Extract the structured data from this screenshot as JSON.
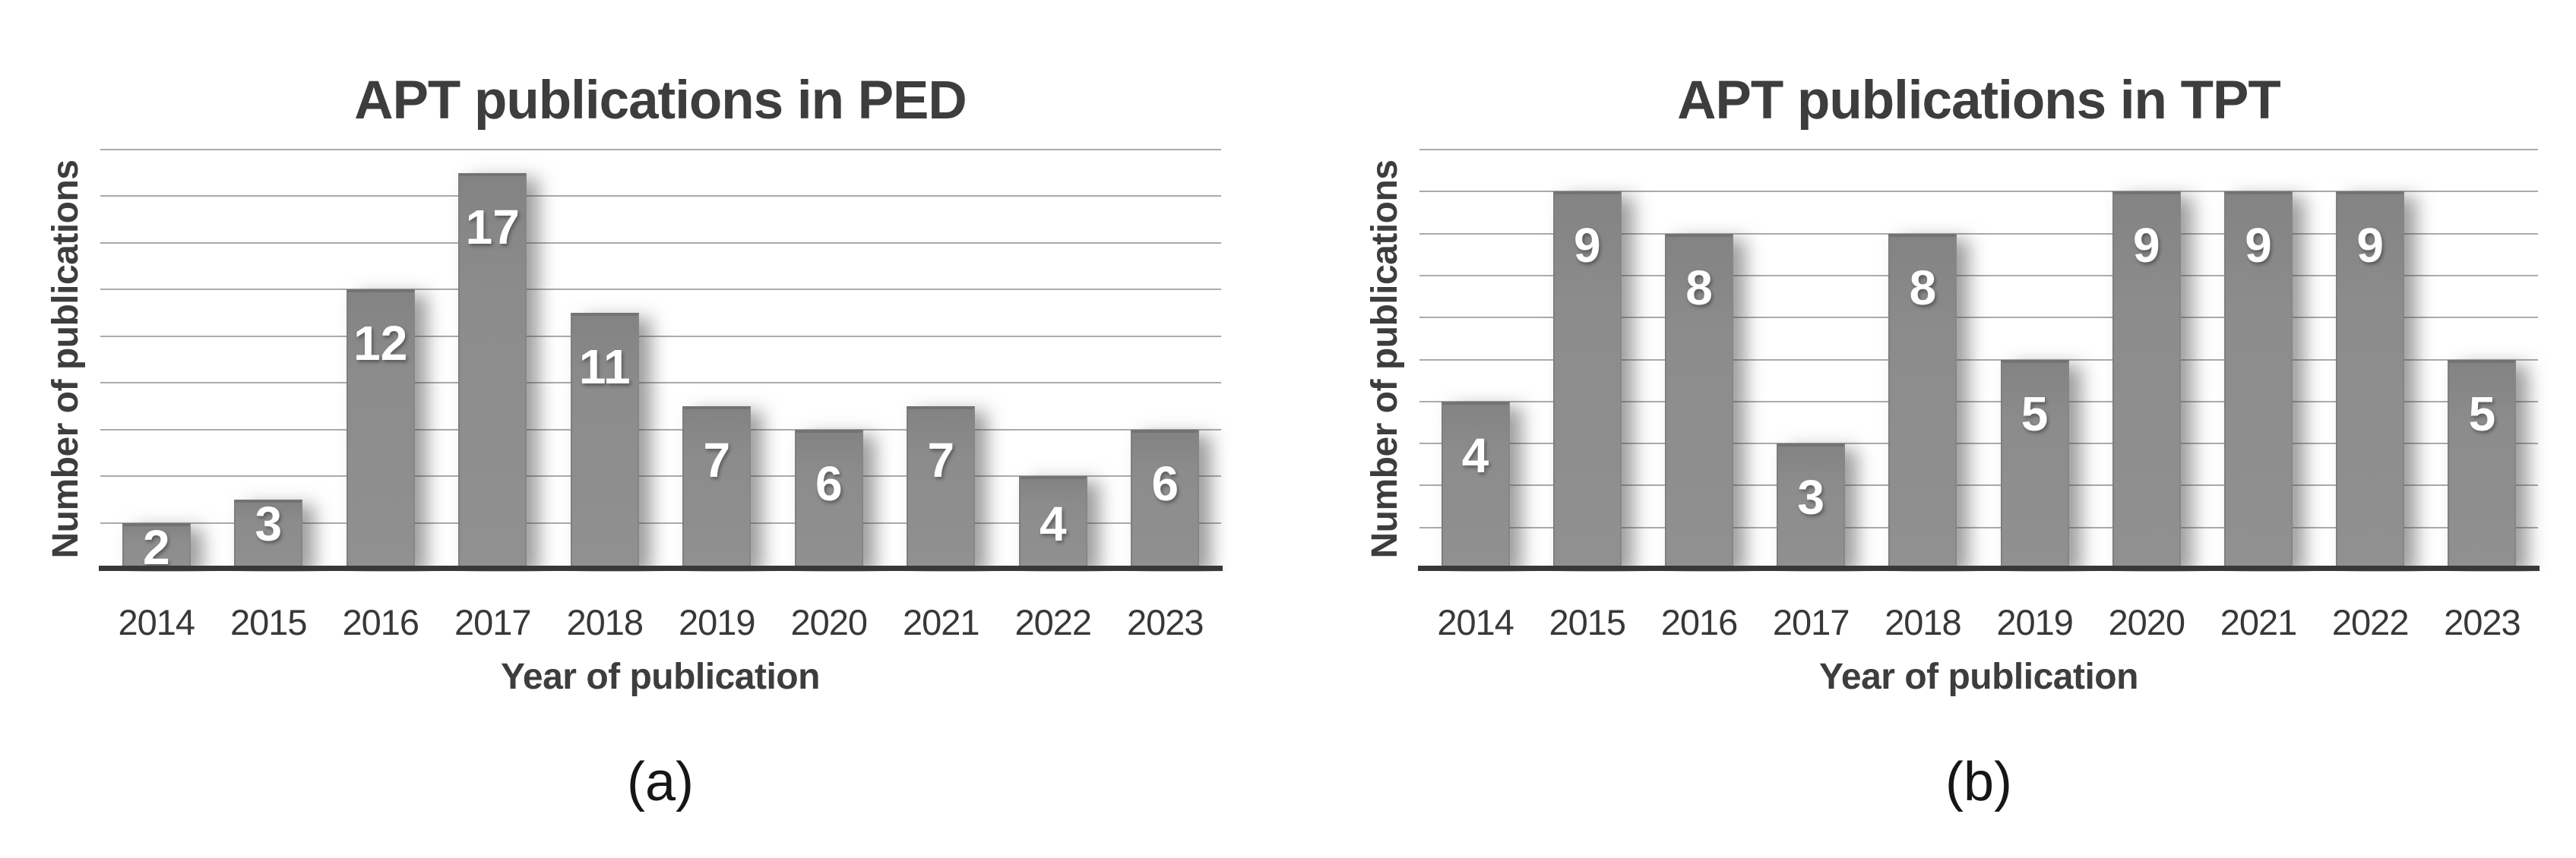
{
  "chart_data": [
    {
      "type": "bar",
      "title": "APT publications in PED",
      "xlabel": "Year of publication",
      "ylabel": "Number of publications",
      "caption": "(a)",
      "categories": [
        "2014",
        "2015",
        "2016",
        "2017",
        "2018",
        "2019",
        "2020",
        "2021",
        "2022",
        "2023"
      ],
      "values": [
        2,
        3,
        12,
        17,
        11,
        7,
        6,
        7,
        4,
        6
      ],
      "ylim": [
        0,
        18
      ],
      "grid_step": 2,
      "grid": "on",
      "y_tick_labels_shown": false,
      "legend": "none",
      "bar_value_labels": "inside-top, white"
    },
    {
      "type": "bar",
      "title": "APT publications in TPT",
      "xlabel": "Year of publication",
      "ylabel": "Number of publications",
      "caption": "(b)",
      "categories": [
        "2014",
        "2015",
        "2016",
        "2017",
        "2018",
        "2019",
        "2020",
        "2021",
        "2022",
        "2023"
      ],
      "values": [
        4,
        9,
        8,
        3,
        8,
        5,
        9,
        9,
        9,
        5
      ],
      "ylim": [
        0,
        10
      ],
      "grid_step": 1,
      "grid": "on",
      "y_tick_labels_shown": false,
      "legend": "none",
      "bar_value_labels": "inside-top, white"
    }
  ],
  "colors": {
    "background": "#ffffff",
    "bar": "#8c8c8c",
    "bar_value_label": "#ffffff",
    "gridline": "#ababab",
    "axis_line": "#383838",
    "tick_text": "#383838",
    "title_text": "#3d3d3d",
    "caption_text": "#161616"
  }
}
